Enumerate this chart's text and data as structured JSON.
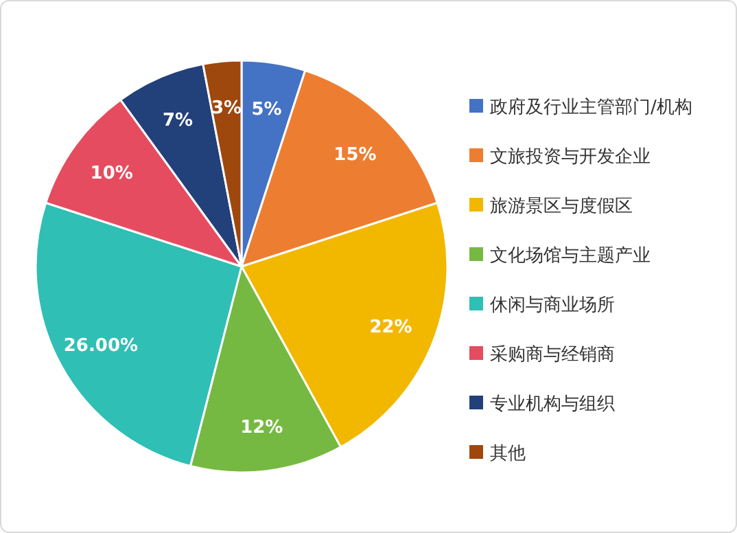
{
  "chart_data": {
    "type": "pie",
    "categories": [
      "政府及行业主管部门/机构",
      "文旅投资与开发企业",
      "旅游景区与度假区",
      "文化场馆与主题产业",
      "休闲与商业场所",
      "采购商与经销商",
      "专业机构与组织",
      "其他"
    ],
    "values": [
      5,
      15,
      22,
      12,
      26,
      10,
      7,
      3
    ],
    "colors": [
      "#4472c4",
      "#ed7d31",
      "#f2b800",
      "#76b942",
      "#2fbfb4",
      "#e64c5f",
      "#22407a",
      "#9e480e"
    ],
    "value_labels": [
      "5%",
      "15%",
      "22%",
      "12%",
      "26.00%",
      "10%",
      "7%",
      "3%"
    ],
    "legend": "right"
  }
}
